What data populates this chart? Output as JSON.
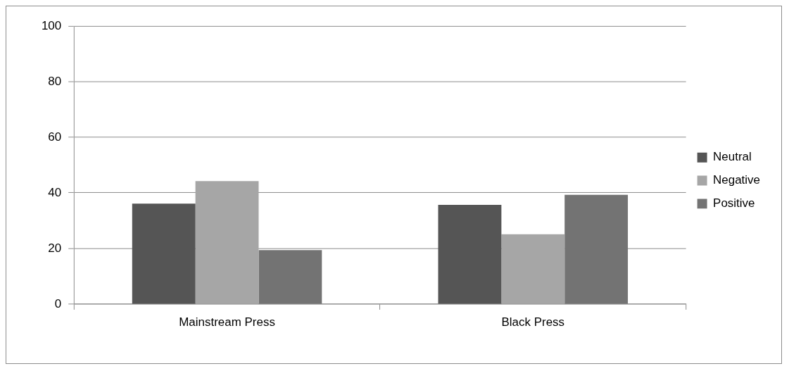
{
  "chart_data": {
    "type": "bar",
    "categories": [
      "Mainstream Press",
      "Black Press"
    ],
    "series": [
      {
        "name": "Neutral",
        "color": "#555555",
        "values": [
          36.1,
          35.7
        ]
      },
      {
        "name": "Negative",
        "color": "#a6a6a6",
        "values": [
          44.2,
          25.1
        ]
      },
      {
        "name": "Positive",
        "color": "#737373",
        "values": [
          19.4,
          39.3
        ]
      }
    ],
    "ylim": [
      0,
      100
    ],
    "yticks": [
      0,
      20,
      40,
      60,
      80,
      100
    ],
    "grid": "y",
    "legend": "right"
  }
}
